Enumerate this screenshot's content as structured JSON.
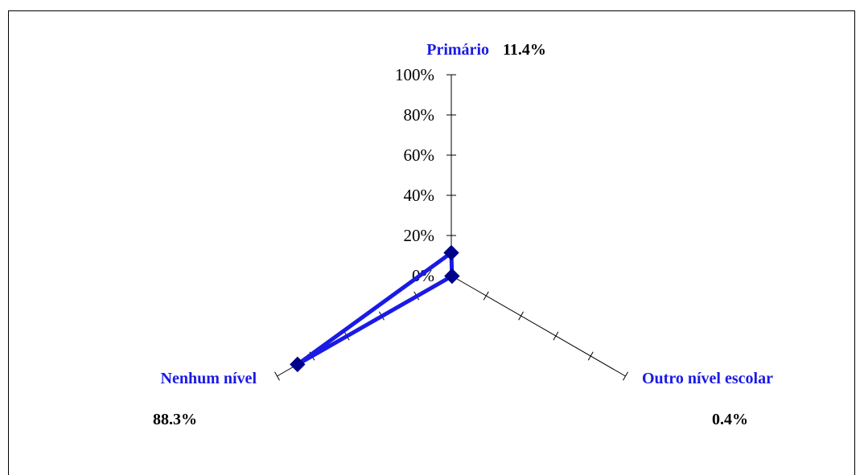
{
  "chart_data": {
    "type": "radar",
    "categories": [
      "Primário",
      "Outro nível escolar",
      "Nenhum nível"
    ],
    "values": [
      11.4,
      0.4,
      88.3
    ],
    "data_labels": [
      "11.4%",
      "0.4%",
      "88.3%"
    ],
    "axis_ticks": [
      "0%",
      "20%",
      "40%",
      "60%",
      "80%",
      "100%"
    ],
    "ylim": [
      0,
      100
    ],
    "series_color": "#1a1ae6",
    "marker_color": "#00008b",
    "category_label_color": "#1a1ae6"
  }
}
